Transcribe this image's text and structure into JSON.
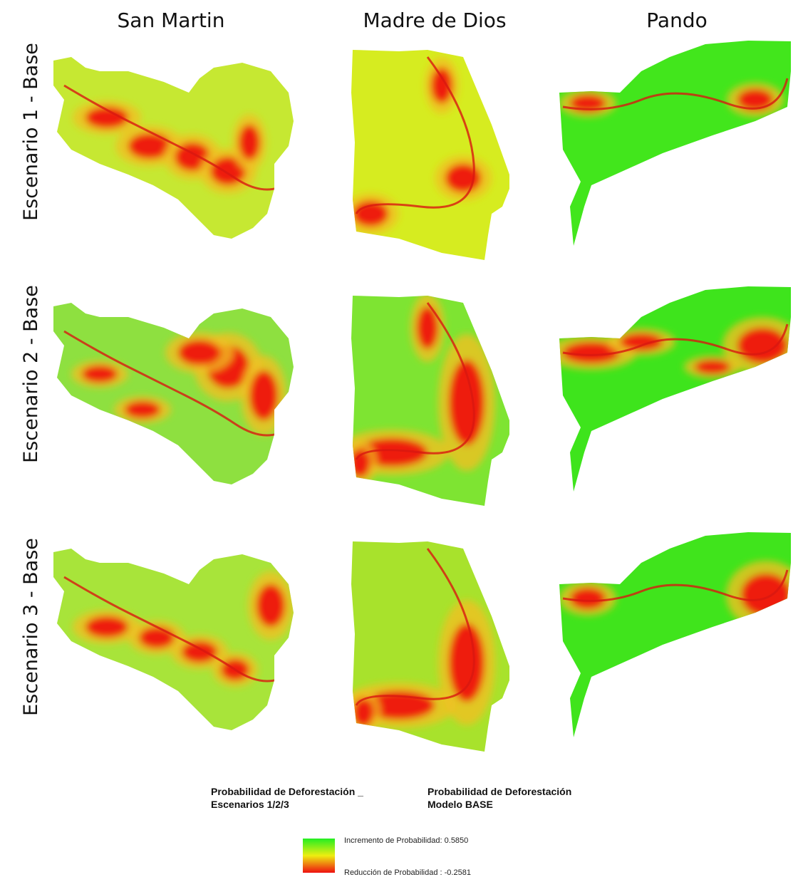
{
  "columns": [
    "San Martin",
    "Madre de Dios",
    "Pando"
  ],
  "rows": [
    "Escenario 1 - Base",
    "Escenario 2 - Base",
    "Escenario 3 - Base"
  ],
  "legend": {
    "title_left": [
      "Probabilidad de Deforestación _",
      "Escenarios 1/2/3"
    ],
    "title_right": [
      "Probabilidad de Deforestación",
      "Modelo BASE"
    ],
    "high_label": "Incremento de Probabilidad: 0.5850",
    "low_label": "Reducción de Probabilidad : -0.2581"
  }
}
